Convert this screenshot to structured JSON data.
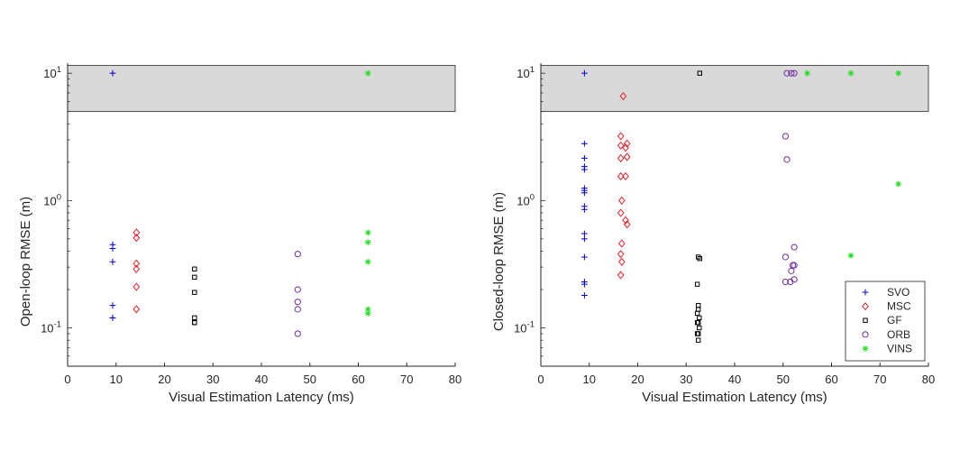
{
  "chart_data": [
    {
      "type": "scatter",
      "title": "",
      "xlabel": "Visual Estimation Latency (ms)",
      "ylabel": "Open-loop RMSE (m)",
      "xlim": [
        0,
        80
      ],
      "ylim": [
        0.05,
        12
      ],
      "yscale": "log",
      "xticks": [
        0,
        10,
        20,
        30,
        40,
        50,
        60,
        70,
        80
      ],
      "yticks": [
        {
          "value": 0.1,
          "base": "10",
          "exp": "-1"
        },
        {
          "value": 1,
          "base": "10",
          "exp": "0"
        },
        {
          "value": 10,
          "base": "10",
          "exp": "1"
        }
      ],
      "shaded_band": {
        "y_from": 5,
        "y_to": 11.5,
        "color": "#d9d9d9"
      },
      "legend": false,
      "series": [
        {
          "name": "SVO",
          "marker": "plus",
          "color": "#0000cc",
          "x": [
            9.3,
            9.3,
            9.3,
            9.3,
            9.3,
            9.3,
            9.3
          ],
          "y": [
            10,
            0.45,
            0.42,
            0.33,
            0.15,
            0.12,
            0.12
          ]
        },
        {
          "name": "MSC",
          "marker": "diamond",
          "color": "#e8202a",
          "x": [
            14.2,
            14.2,
            14.2,
            14.2,
            14.2,
            14.2
          ],
          "y": [
            0.56,
            0.51,
            0.32,
            0.29,
            0.21,
            0.14
          ]
        },
        {
          "name": "GF",
          "marker": "square",
          "color": "#000000",
          "x": [
            26.2,
            26.2,
            26.2,
            26.2,
            26.2,
            26.2
          ],
          "y": [
            0.29,
            0.25,
            0.19,
            0.12,
            0.11,
            0.11
          ]
        },
        {
          "name": "ORB",
          "marker": "circle",
          "color": "#7030a0",
          "x": [
            47.5,
            47.5,
            47.5,
            47.5,
            47.5
          ],
          "y": [
            0.38,
            0.2,
            0.16,
            0.14,
            0.09
          ]
        },
        {
          "name": "VINS",
          "marker": "star",
          "color": "#22dd22",
          "x": [
            62,
            62,
            62,
            62,
            62,
            62
          ],
          "y": [
            10,
            0.56,
            0.47,
            0.33,
            0.14,
            0.13
          ]
        }
      ]
    },
    {
      "type": "scatter",
      "title": "",
      "xlabel": "Visual Estimation Latency (ms)",
      "ylabel": "Closed-loop RMSE (m)",
      "xlim": [
        0,
        80
      ],
      "ylim": [
        0.05,
        12
      ],
      "yscale": "log",
      "xticks": [
        0,
        10,
        20,
        30,
        40,
        50,
        60,
        70,
        80
      ],
      "yticks": [
        {
          "value": 0.1,
          "base": "10",
          "exp": "-1"
        },
        {
          "value": 1,
          "base": "10",
          "exp": "0"
        },
        {
          "value": 10,
          "base": "10",
          "exp": "1"
        }
      ],
      "shaded_band": {
        "y_from": 5,
        "y_to": 11.5,
        "color": "#d9d9d9"
      },
      "legend": true,
      "legend_position": "bottom-right",
      "series": [
        {
          "name": "SVO",
          "marker": "plus",
          "color": "#0000cc",
          "x": [
            9,
            9,
            9,
            9,
            9,
            9,
            9,
            9,
            9,
            9,
            9,
            9,
            9,
            9,
            9,
            9
          ],
          "y": [
            10,
            2.8,
            2.15,
            1.85,
            1.75,
            1.25,
            1.2,
            1.15,
            0.9,
            0.85,
            0.55,
            0.5,
            0.36,
            0.23,
            0.22,
            0.18
          ]
        },
        {
          "name": "MSC",
          "marker": "diamond",
          "color": "#e8202a",
          "x": [
            17,
            16.5,
            16.5,
            17.8,
            17.5,
            16.5,
            17.8,
            16.5,
            17.5,
            16.7,
            16.5,
            17.5,
            17.8,
            16.7,
            16.5,
            16.7,
            16.5
          ],
          "y": [
            6.6,
            3.2,
            2.7,
            2.8,
            2.6,
            2.15,
            2.2,
            1.55,
            1.55,
            1.0,
            0.8,
            0.7,
            0.65,
            0.46,
            0.38,
            0.33,
            0.26
          ]
        },
        {
          "name": "GF",
          "marker": "square",
          "color": "#000000",
          "x": [
            32.8,
            32.5,
            32.8,
            32.3,
            32.5,
            32.5,
            32.3,
            32.7,
            32.3,
            32.5,
            32.7,
            32.3,
            32.5,
            32.5
          ],
          "y": [
            10,
            0.36,
            0.35,
            0.22,
            0.15,
            0.14,
            0.13,
            0.12,
            0.11,
            0.11,
            0.1,
            0.09,
            0.09,
            0.08
          ]
        },
        {
          "name": "ORB",
          "marker": "circle",
          "color": "#7030a0",
          "x": [
            50.8,
            51.7,
            52.3,
            50.5,
            50.8,
            52.3,
            50.5,
            52,
            52.3,
            51.7,
            52.3,
            50.5,
            51.5
          ],
          "y": [
            10,
            10,
            10,
            3.2,
            2.1,
            0.43,
            0.36,
            0.31,
            0.31,
            0.28,
            0.24,
            0.23,
            0.23
          ]
        },
        {
          "name": "VINS",
          "marker": "star",
          "color": "#22dd22",
          "x": [
            55,
            64,
            73.8,
            73.8,
            64
          ],
          "y": [
            10,
            10,
            10,
            1.35,
            0.37
          ]
        }
      ]
    }
  ]
}
